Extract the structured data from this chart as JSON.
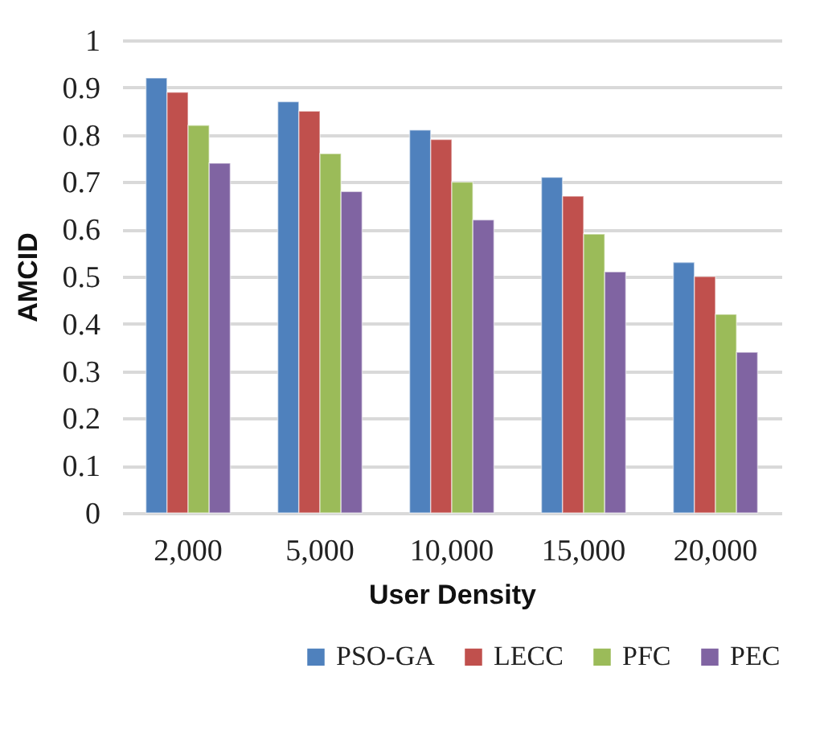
{
  "chart_data": {
    "type": "bar",
    "xlabel": "User Density",
    "ylabel": "AMCID",
    "categories": [
      "2,000",
      "5,000",
      "10,000",
      "15,000",
      "20,000"
    ],
    "series": [
      {
        "name": "PSO-GA",
        "color": "#4f81bd",
        "values": [
          0.92,
          0.87,
          0.81,
          0.71,
          0.53
        ]
      },
      {
        "name": "LECC",
        "color": "#c0504d",
        "values": [
          0.89,
          0.85,
          0.79,
          0.67,
          0.5
        ]
      },
      {
        "name": "PFC",
        "color": "#9bbb59",
        "values": [
          0.82,
          0.76,
          0.7,
          0.59,
          0.42
        ]
      },
      {
        "name": "PEC",
        "color": "#8064a2",
        "values": [
          0.74,
          0.68,
          0.62,
          0.51,
          0.34
        ]
      }
    ],
    "ylim": [
      0,
      1
    ],
    "yticks": [
      0,
      0.1,
      0.2,
      0.3,
      0.4,
      0.5,
      0.6,
      0.7,
      0.8,
      0.9,
      1
    ],
    "grid": "y",
    "legend": "bottom"
  }
}
